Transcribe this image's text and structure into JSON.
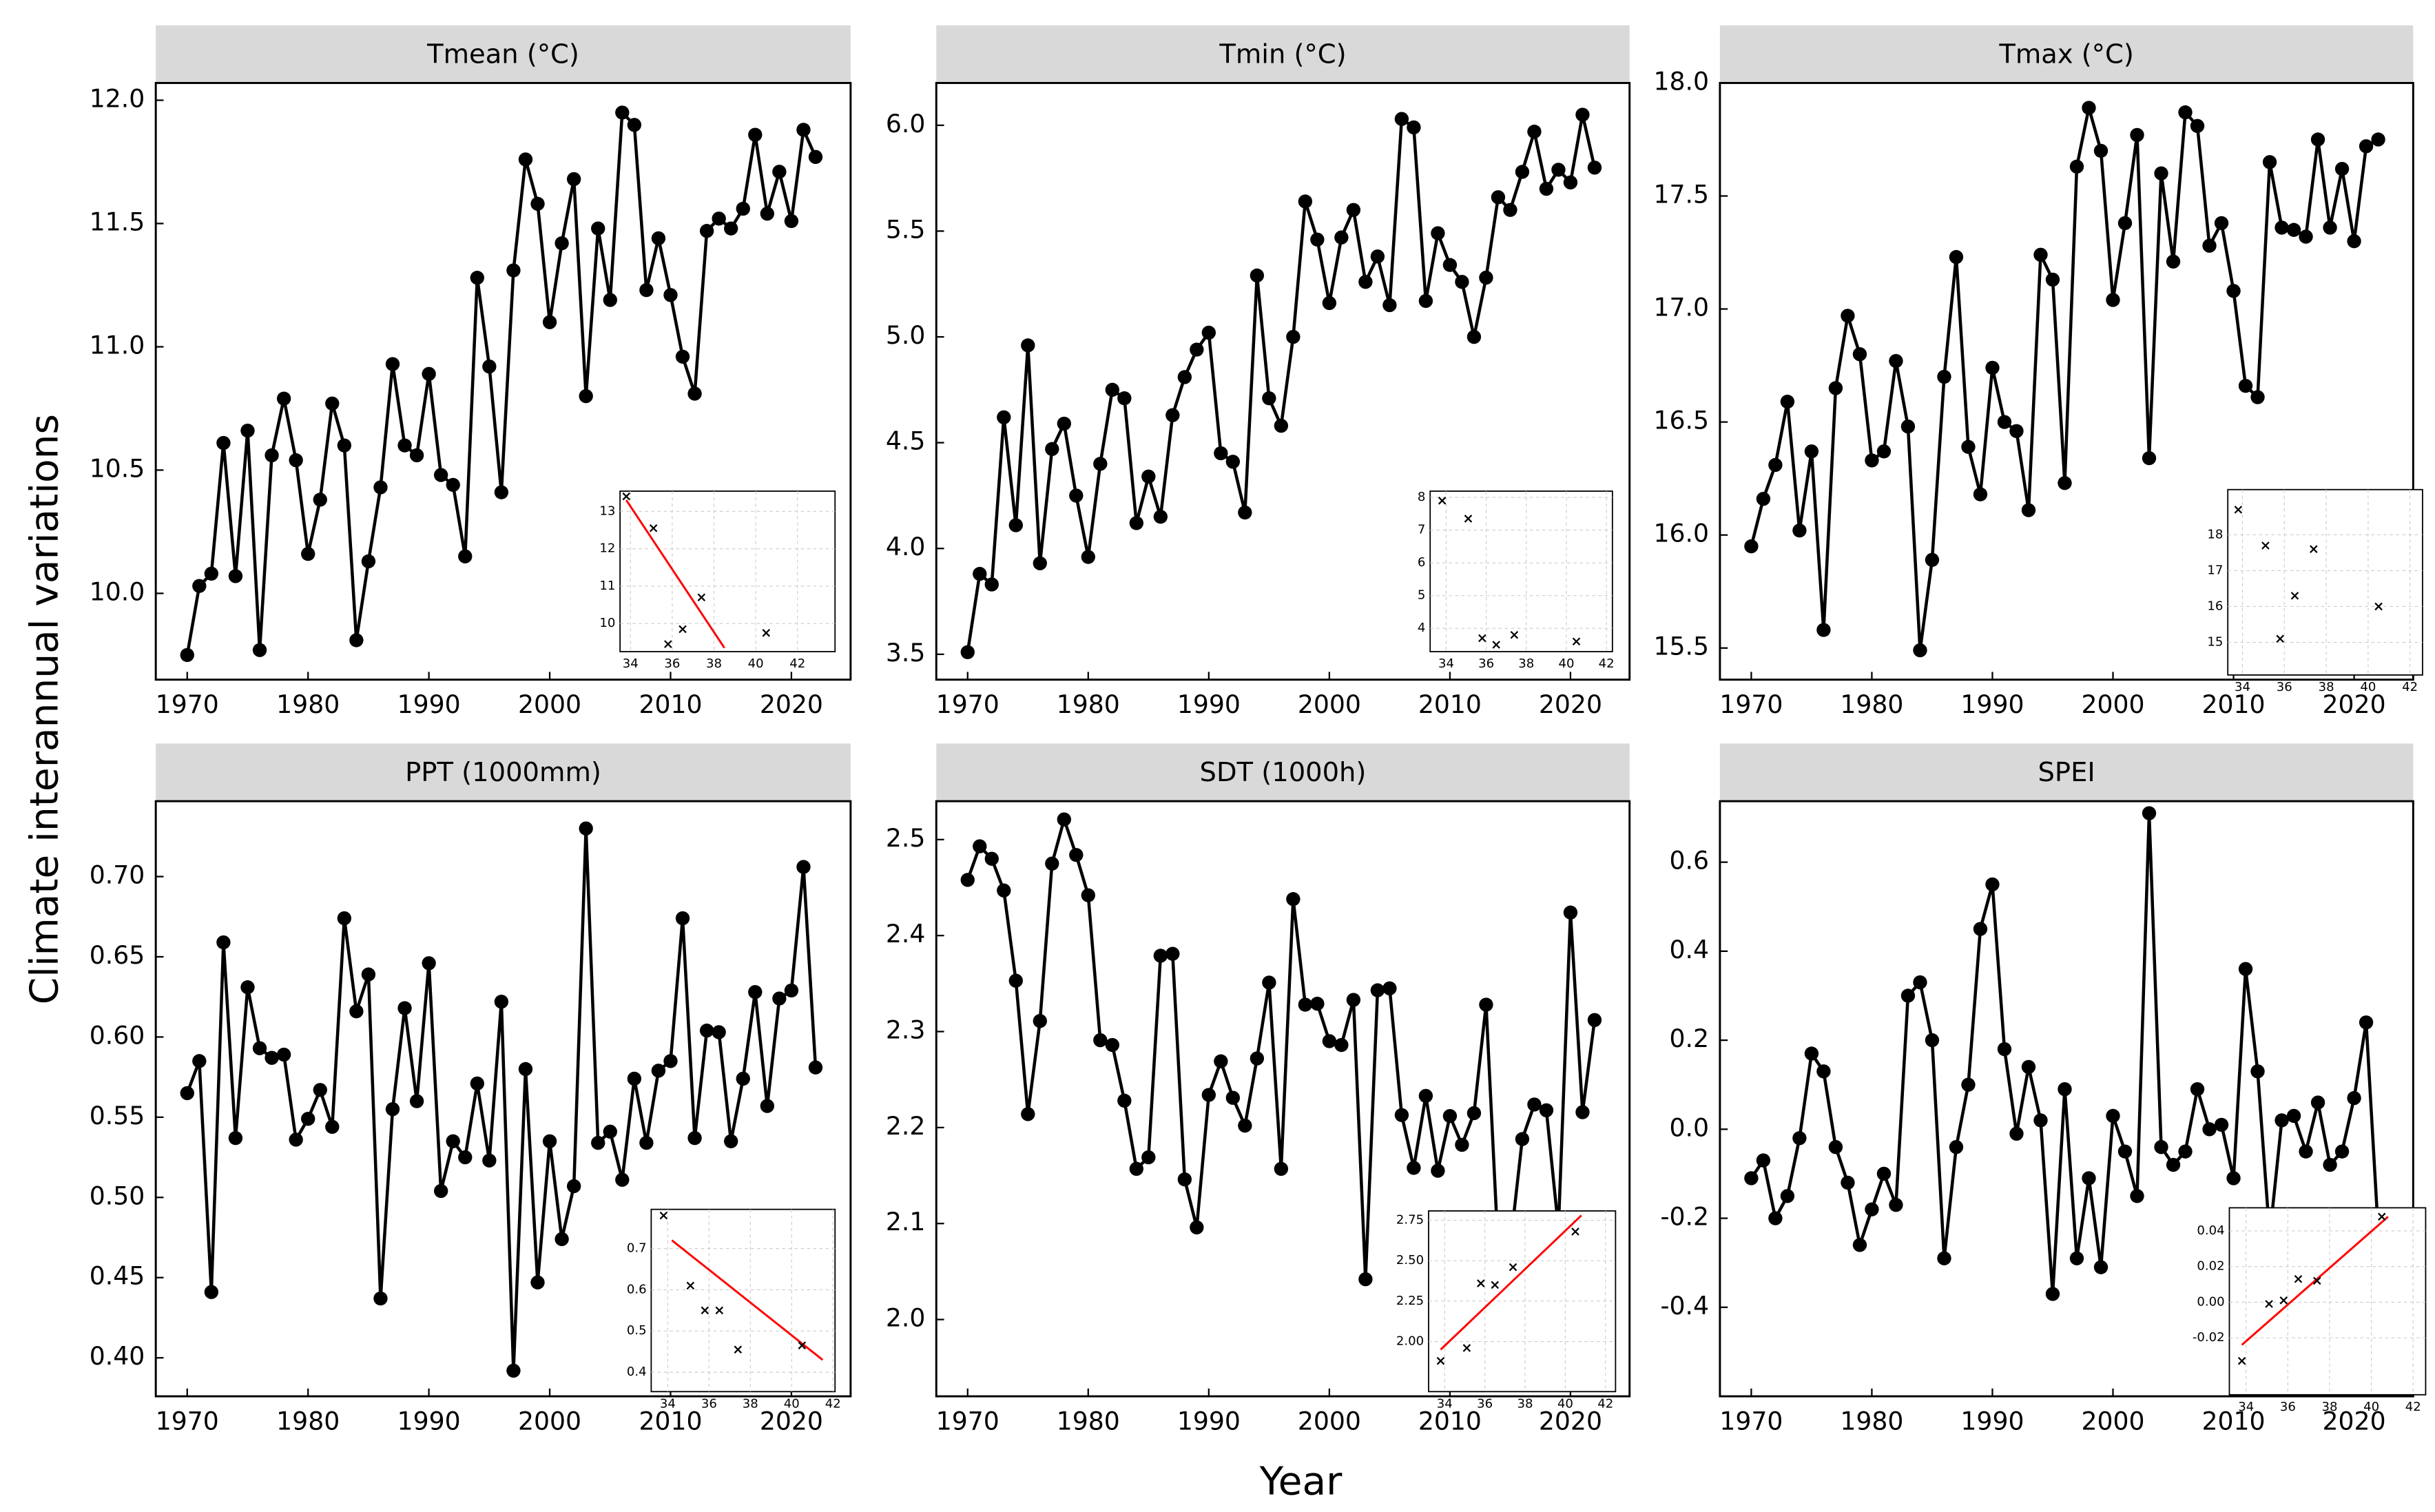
{
  "figure": {
    "xlabel": "Year",
    "ylabel": "Climate interannual variations"
  },
  "chart_data": [
    {
      "type": "line",
      "title": "Tmean (°C)",
      "color": "#000000",
      "x": [
        1970,
        1971,
        1972,
        1973,
        1974,
        1975,
        1976,
        1977,
        1978,
        1979,
        1980,
        1981,
        1982,
        1983,
        1984,
        1985,
        1986,
        1987,
        1988,
        1989,
        1990,
        1991,
        1992,
        1993,
        1994,
        1995,
        1996,
        1997,
        1998,
        1999,
        2000,
        2001,
        2002,
        2003,
        2004,
        2005,
        2006,
        2007,
        2008,
        2009,
        2010,
        2011,
        2012,
        2013,
        2014,
        2015,
        2016,
        2017,
        2018,
        2019,
        2020,
        2021,
        2022
      ],
      "values": [
        9.75,
        10.03,
        10.08,
        10.61,
        10.07,
        10.66,
        9.77,
        10.56,
        10.79,
        10.54,
        10.16,
        10.38,
        10.77,
        10.6,
        9.81,
        10.13,
        10.43,
        10.93,
        10.6,
        10.56,
        10.89,
        10.48,
        10.44,
        10.15,
        11.28,
        10.92,
        10.41,
        11.31,
        11.76,
        11.58,
        11.1,
        11.42,
        11.68,
        10.8,
        11.48,
        11.19,
        11.95,
        11.9,
        11.23,
        11.44,
        11.21,
        10.96,
        10.81,
        11.47,
        11.52,
        11.48,
        11.56,
        11.86,
        11.54,
        11.71,
        11.51,
        11.88,
        11.77
      ],
      "xlim": [
        1967.4,
        2024.9
      ],
      "xticks": [
        1970,
        1980,
        1990,
        2000,
        2010,
        2020
      ],
      "ylim": [
        9.65,
        12.07
      ],
      "yticks": [
        {
          "value": 10,
          "label": "10.0"
        },
        10.5,
        {
          "value": 11,
          "label": "11.0"
        },
        11.5,
        {
          "value": 12,
          "label": "12.0"
        }
      ],
      "inset": {
        "type": "scatter",
        "marker_color": "#000000",
        "x": [
          33.8,
          35.1,
          35.8,
          36.5,
          37.4,
          40.5
        ],
        "y": [
          13.4,
          12.55,
          9.45,
          9.85,
          10.7,
          9.75
        ],
        "xlim": [
          33.5,
          43.8
        ],
        "xticks": [
          34,
          36,
          38,
          40,
          42
        ],
        "ylim": [
          9.25,
          13.54
        ],
        "yticks": [
          10,
          11,
          12,
          13
        ],
        "fit": {
          "color": "#ff0000",
          "x": [
            33.8,
            38.5
          ],
          "y": [
            13.3,
            9.35
          ]
        }
      }
    },
    {
      "type": "line",
      "title": "Tmin (°C)",
      "color": "#000000",
      "x": [
        1970,
        1971,
        1972,
        1973,
        1974,
        1975,
        1976,
        1977,
        1978,
        1979,
        1980,
        1981,
        1982,
        1983,
        1984,
        1985,
        1986,
        1987,
        1988,
        1989,
        1990,
        1991,
        1992,
        1993,
        1994,
        1995,
        1996,
        1997,
        1998,
        1999,
        2000,
        2001,
        2002,
        2003,
        2004,
        2005,
        2006,
        2007,
        2008,
        2009,
        2010,
        2011,
        2012,
        2013,
        2014,
        2015,
        2016,
        2017,
        2018,
        2019,
        2020,
        2021,
        2022
      ],
      "values": [
        3.51,
        3.88,
        3.83,
        4.62,
        4.11,
        4.96,
        3.93,
        4.47,
        4.59,
        4.25,
        3.96,
        4.4,
        4.75,
        4.71,
        4.12,
        4.34,
        4.15,
        4.63,
        4.81,
        4.94,
        5.02,
        4.45,
        4.41,
        4.17,
        5.29,
        4.71,
        4.58,
        5.0,
        5.64,
        5.46,
        5.16,
        5.47,
        5.6,
        5.26,
        5.38,
        5.15,
        6.03,
        5.99,
        5.17,
        5.49,
        5.34,
        5.26,
        5.0,
        5.28,
        5.66,
        5.6,
        5.78,
        5.97,
        5.7,
        5.79,
        5.73,
        6.05,
        5.8
      ],
      "xlim": [
        1967.4,
        2024.9
      ],
      "xticks": [
        1970,
        1980,
        1990,
        2000,
        2010,
        2020
      ],
      "ylim": [
        3.38,
        6.2
      ],
      "yticks": [
        3.5,
        {
          "value": 4,
          "label": "4.0"
        },
        4.5,
        {
          "value": 5,
          "label": "5.0"
        },
        5.5,
        {
          "value": 6,
          "label": "6.0"
        }
      ],
      "inset": {
        "type": "scatter",
        "marker_color": "#000000",
        "x": [
          33.8,
          35.1,
          35.8,
          36.5,
          37.4,
          40.5
        ],
        "y": [
          7.9,
          7.35,
          3.7,
          3.5,
          3.8,
          3.6
        ],
        "xlim": [
          33.2,
          42.3
        ],
        "xticks": [
          34,
          36,
          38,
          40,
          42
        ],
        "ylim": [
          3.29,
          8.19
        ],
        "yticks": [
          4,
          5,
          6,
          7,
          8
        ]
      }
    },
    {
      "type": "line",
      "title": "Tmax (°C)",
      "color": "#000000",
      "x": [
        1970,
        1971,
        1972,
        1973,
        1974,
        1975,
        1976,
        1977,
        1978,
        1979,
        1980,
        1981,
        1982,
        1983,
        1984,
        1985,
        1986,
        1987,
        1988,
        1989,
        1990,
        1991,
        1992,
        1993,
        1994,
        1995,
        1996,
        1997,
        1998,
        1999,
        2000,
        2001,
        2002,
        2003,
        2004,
        2005,
        2006,
        2007,
        2008,
        2009,
        2010,
        2011,
        2012,
        2013,
        2014,
        2015,
        2016,
        2017,
        2018,
        2019,
        2020,
        2021,
        2022
      ],
      "values": [
        15.95,
        16.16,
        16.31,
        16.59,
        16.02,
        16.37,
        15.58,
        16.65,
        16.97,
        16.8,
        16.33,
        16.37,
        16.77,
        16.48,
        15.49,
        15.89,
        16.7,
        17.23,
        16.39,
        16.18,
        16.74,
        16.5,
        16.46,
        16.11,
        17.24,
        17.13,
        16.23,
        17.63,
        17.89,
        17.7,
        17.04,
        17.38,
        17.77,
        16.34,
        17.6,
        17.21,
        17.87,
        17.81,
        17.28,
        17.38,
        17.08,
        16.66,
        16.61,
        17.65,
        17.36,
        17.35,
        17.32,
        17.75,
        17.36,
        17.62,
        17.3,
        17.72,
        17.75
      ],
      "xlim": [
        1967.4,
        2024.9
      ],
      "xticks": [
        1970,
        1980,
        1990,
        2000,
        2010,
        2020
      ],
      "ylim": [
        15.36,
        18.0
      ],
      "yticks": [
        15.5,
        {
          "value": 16,
          "label": "16.0"
        },
        16.5,
        {
          "value": 17,
          "label": "17.0"
        },
        17.5,
        {
          "value": 18,
          "label": "18.0"
        }
      ],
      "inset": {
        "type": "scatter",
        "marker_color": "#000000",
        "x": [
          33.8,
          35.1,
          35.8,
          36.5,
          37.4,
          40.5
        ],
        "y": [
          18.7,
          17.7,
          15.1,
          16.3,
          17.6,
          16.0
        ],
        "xlim": [
          33.3,
          42.6
        ],
        "xticks": [
          34,
          36,
          38,
          40,
          42
        ],
        "ylim": [
          14.09,
          19.26
        ],
        "yticks": [
          15,
          16,
          17,
          18
        ]
      }
    },
    {
      "type": "line",
      "title": "PPT (1000mm)",
      "color": "#000000",
      "x": [
        1970,
        1971,
        1972,
        1973,
        1974,
        1975,
        1976,
        1977,
        1978,
        1979,
        1980,
        1981,
        1982,
        1983,
        1984,
        1985,
        1986,
        1987,
        1988,
        1989,
        1990,
        1991,
        1992,
        1993,
        1994,
        1995,
        1996,
        1997,
        1998,
        1999,
        2000,
        2001,
        2002,
        2003,
        2004,
        2005,
        2006,
        2007,
        2008,
        2009,
        2010,
        2011,
        2012,
        2013,
        2014,
        2015,
        2016,
        2017,
        2018,
        2019,
        2020,
        2021,
        2022
      ],
      "values": [
        0.565,
        0.585,
        0.441,
        0.659,
        0.537,
        0.631,
        0.593,
        0.587,
        0.589,
        0.536,
        0.549,
        0.567,
        0.544,
        0.674,
        0.616,
        0.639,
        0.437,
        0.555,
        0.618,
        0.56,
        0.646,
        0.504,
        0.535,
        0.525,
        0.571,
        0.523,
        0.622,
        0.392,
        0.58,
        0.447,
        0.535,
        0.474,
        0.507,
        0.73,
        0.534,
        0.541,
        0.511,
        0.574,
        0.534,
        0.579,
        0.585,
        0.674,
        0.537,
        0.604,
        0.603,
        0.535,
        0.574,
        0.628,
        0.557,
        0.624,
        0.629,
        0.706,
        0.581
      ],
      "xlim": [
        1967.4,
        2024.9
      ],
      "xticks": [
        1970,
        1980,
        1990,
        2000,
        2010,
        2020
      ],
      "ylim": [
        0.376,
        0.747
      ],
      "yticks": [
        {
          "value": 0.4,
          "label": "0.40"
        },
        0.45,
        {
          "value": 0.5,
          "label": "0.50"
        },
        0.55,
        {
          "value": 0.6,
          "label": "0.60"
        },
        0.65,
        {
          "value": 0.7,
          "label": "0.70"
        }
      ],
      "inset": {
        "type": "scatter",
        "marker_color": "#000000",
        "x": [
          33.8,
          35.1,
          35.8,
          36.5,
          37.4,
          40.5
        ],
        "y": [
          0.78,
          0.61,
          0.55,
          0.55,
          0.455,
          0.465
        ],
        "xlim": [
          33.2,
          42.1
        ],
        "xticks": [
          34,
          36,
          38,
          40,
          42
        ],
        "ylim": [
          0.353,
          0.795
        ],
        "yticks": [
          0.4,
          0.5,
          0.6,
          0.7
        ],
        "fit": {
          "color": "#ff0000",
          "x": [
            34.2,
            41.5
          ],
          "y": [
            0.72,
            0.43
          ]
        }
      }
    },
    {
      "type": "line",
      "title": "SDT (1000h)",
      "color": "#000000",
      "x": [
        1970,
        1971,
        1972,
        1973,
        1974,
        1975,
        1976,
        1977,
        1978,
        1979,
        1980,
        1981,
        1982,
        1983,
        1984,
        1985,
        1986,
        1987,
        1988,
        1989,
        1990,
        1991,
        1992,
        1993,
        1994,
        1995,
        1996,
        1997,
        1998,
        1999,
        2000,
        2001,
        2002,
        2003,
        2004,
        2005,
        2006,
        2007,
        2008,
        2009,
        2010,
        2011,
        2012,
        2013,
        2014,
        2015,
        2016,
        2017,
        2018,
        2019,
        2020,
        2021,
        2022
      ],
      "values": [
        2.458,
        2.493,
        2.48,
        2.447,
        2.353,
        2.214,
        2.311,
        2.475,
        2.521,
        2.484,
        2.442,
        2.291,
        2.286,
        2.228,
        2.157,
        2.169,
        2.379,
        2.381,
        2.146,
        2.096,
        2.234,
        2.269,
        2.231,
        2.202,
        2.272,
        2.351,
        2.157,
        2.438,
        2.328,
        2.329,
        2.29,
        2.286,
        2.333,
        2.042,
        2.343,
        2.345,
        2.213,
        2.158,
        2.233,
        2.155,
        2.212,
        2.182,
        2.215,
        2.328,
        2.073,
        2.076,
        2.188,
        2.224,
        2.218,
        2.095,
        2.424,
        2.216,
        2.312
      ],
      "xlim": [
        1967.4,
        2024.9
      ],
      "xticks": [
        1970,
        1980,
        1990,
        2000,
        2010,
        2020
      ],
      "ylim": [
        1.92,
        2.54
      ],
      "yticks": [
        {
          "value": 2,
          "label": "2.0"
        },
        2.1,
        2.2,
        2.3,
        2.4,
        2.5
      ],
      "inset": {
        "type": "scatter",
        "marker_color": "#000000",
        "x": [
          33.8,
          35.1,
          35.8,
          36.5,
          37.4,
          40.5
        ],
        "y": [
          1.88,
          1.96,
          2.36,
          2.35,
          2.46,
          2.68
        ],
        "xlim": [
          33.2,
          42.5
        ],
        "xticks": [
          34,
          36,
          38,
          40,
          42
        ],
        "ylim": [
          1.69,
          2.808
        ],
        "yticks": [
          {
            "value": 2,
            "label": "2.00"
          },
          2.25,
          {
            "value": 2.5,
            "label": "2.50"
          },
          2.75
        ],
        "fit": {
          "color": "#ff0000",
          "x": [
            33.8,
            40.8
          ],
          "y": [
            1.95,
            2.78
          ]
        }
      }
    },
    {
      "type": "line",
      "title": "SPEI",
      "color": "#000000",
      "x": [
        1970,
        1971,
        1972,
        1973,
        1974,
        1975,
        1976,
        1977,
        1978,
        1979,
        1980,
        1981,
        1982,
        1983,
        1984,
        1985,
        1986,
        1987,
        1988,
        1989,
        1990,
        1991,
        1992,
        1993,
        1994,
        1995,
        1996,
        1997,
        1998,
        1999,
        2000,
        2001,
        2002,
        2003,
        2004,
        2005,
        2006,
        2007,
        2008,
        2009,
        2010,
        2011,
        2012,
        2013,
        2014,
        2015,
        2016,
        2017,
        2018,
        2019,
        2020,
        2021,
        2022
      ],
      "values": [
        -0.11,
        -0.07,
        -0.2,
        -0.15,
        -0.02,
        0.17,
        0.13,
        -0.04,
        -0.12,
        -0.26,
        -0.18,
        -0.1,
        -0.17,
        0.3,
        0.33,
        0.2,
        -0.29,
        -0.04,
        0.1,
        0.45,
        0.55,
        0.18,
        -0.01,
        0.14,
        0.02,
        -0.37,
        0.09,
        -0.29,
        -0.11,
        -0.31,
        0.03,
        -0.05,
        -0.15,
        0.71,
        -0.04,
        -0.08,
        -0.05,
        0.09,
        0.0,
        0.01,
        -0.11,
        0.36,
        0.13,
        -0.24,
        0.02,
        0.03,
        -0.05,
        0.06,
        -0.08,
        -0.05,
        0.07,
        0.24,
        -0.23
      ],
      "xlim": [
        1967.4,
        2024.9
      ],
      "xticks": [
        1970,
        1980,
        1990,
        2000,
        2010,
        2020
      ],
      "ylim": [
        -0.6,
        0.737
      ],
      "yticks": [
        -0.4,
        -0.2,
        {
          "value": 0,
          "label": "0.0"
        },
        0.2,
        0.4,
        0.6
      ],
      "inset": {
        "type": "scatter",
        "marker_color": "#000000",
        "x": [
          33.8,
          35.1,
          35.8,
          36.5,
          37.4,
          40.5
        ],
        "y": [
          -0.033,
          -0.001,
          0.001,
          0.013,
          0.012,
          0.048
        ],
        "xlim": [
          33.2,
          42.6
        ],
        "xticks": [
          34,
          36,
          38,
          40,
          42
        ],
        "ylim": [
          -0.052,
          0.053
        ],
        "yticks": [
          -0.02,
          {
            "value": 0,
            "label": "0.00"
          },
          0.02,
          0.04
        ],
        "fit": {
          "color": "#ff0000",
          "x": [
            33.8,
            40.8
          ],
          "y": [
            -0.024,
            0.048
          ]
        }
      }
    }
  ]
}
